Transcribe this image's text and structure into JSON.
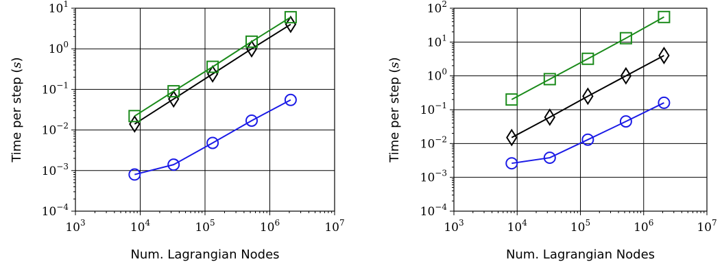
{
  "chart_data": [
    {
      "type": "line",
      "title": "",
      "xlabel": "Num. Lagrangian Nodes",
      "ylabel_prefix": "Time per step (",
      "ylabel_var": "s",
      "ylabel_suffix": ")",
      "xscale": "log",
      "yscale": "log",
      "xlim": [
        1000,
        10000000
      ],
      "ylim": [
        0.0001,
        10
      ],
      "grid": true,
      "x_ticks": [
        1000,
        10000,
        100000,
        1000000,
        10000000
      ],
      "x_tick_base": "10",
      "x_tick_exponents": [
        "3",
        "4",
        "5",
        "6",
        "7"
      ],
      "y_ticks": [
        0.0001,
        0.001,
        0.01,
        0.1,
        1,
        10
      ],
      "y_tick_base": "10",
      "y_tick_exponents": [
        "−4",
        "−3",
        "−2",
        "−1",
        "0",
        "1"
      ],
      "x": [
        8192,
        32768,
        131072,
        524288,
        2097152
      ],
      "series": [
        {
          "color": "#1a1ae6",
          "marker": "circle",
          "values": [
            0.0008,
            0.0014,
            0.0048,
            0.017,
            0.055
          ]
        },
        {
          "color": "#000000",
          "marker": "diamond",
          "values": [
            0.014,
            0.058,
            0.24,
            1.0,
            4.0
          ]
        },
        {
          "color": "#1a8a1a",
          "marker": "square",
          "values": [
            0.022,
            0.09,
            0.36,
            1.5,
            6.0
          ]
        }
      ]
    },
    {
      "type": "line",
      "title": "",
      "xlabel": "Num. Lagrangian Nodes",
      "ylabel_prefix": "Time per step (",
      "ylabel_var": "s",
      "ylabel_suffix": ")",
      "xscale": "log",
      "yscale": "log",
      "xlim": [
        1000,
        10000000
      ],
      "ylim": [
        0.0001,
        100
      ],
      "grid": true,
      "x_ticks": [
        1000,
        10000,
        100000,
        1000000,
        10000000
      ],
      "x_tick_base": "10",
      "x_tick_exponents": [
        "3",
        "4",
        "5",
        "6",
        "7"
      ],
      "y_ticks": [
        0.0001,
        0.001,
        0.01,
        0.1,
        1,
        10,
        100
      ],
      "y_tick_base": "10",
      "y_tick_exponents": [
        "−4",
        "−3",
        "−2",
        "−1",
        "0",
        "1",
        "2"
      ],
      "x": [
        8192,
        32768,
        131072,
        524288,
        2097152
      ],
      "series": [
        {
          "color": "#1a1ae6",
          "marker": "circle",
          "values": [
            0.0026,
            0.0038,
            0.013,
            0.045,
            0.16
          ]
        },
        {
          "color": "#000000",
          "marker": "diamond",
          "values": [
            0.015,
            0.06,
            0.25,
            1.0,
            4.0
          ]
        },
        {
          "color": "#1a8a1a",
          "marker": "square",
          "values": [
            0.2,
            0.8,
            3.2,
            13,
            55
          ]
        }
      ]
    }
  ]
}
